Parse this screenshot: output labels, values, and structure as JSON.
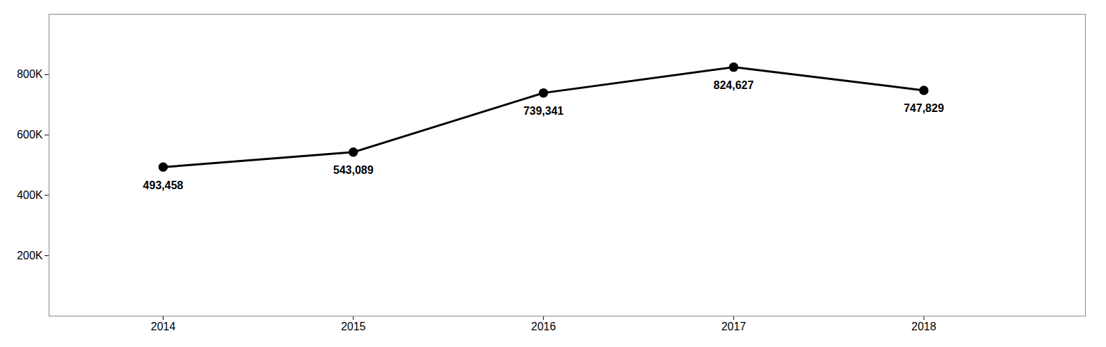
{
  "chart_data": {
    "type": "line",
    "x": [
      2014,
      2015,
      2016,
      2017,
      2018
    ],
    "values": [
      493458,
      543089,
      739341,
      824627,
      747829
    ],
    "value_labels": [
      "493,458",
      "543,089",
      "739,341",
      "824,627",
      "747,829"
    ],
    "data_labels": true,
    "color": "#000000",
    "marker": "circle",
    "xlim": [
      2013.4,
      2018.85
    ],
    "xticks": [
      2014,
      2015,
      2016,
      2017,
      2018
    ],
    "ylim": [
      0,
      1000000
    ],
    "yticks": [
      {
        "value": 200000,
        "label": "200K"
      },
      {
        "value": 400000,
        "label": "400K"
      },
      {
        "value": 600000,
        "label": "600K"
      },
      {
        "value": 800000,
        "label": "800K"
      }
    ],
    "grid": false
  }
}
